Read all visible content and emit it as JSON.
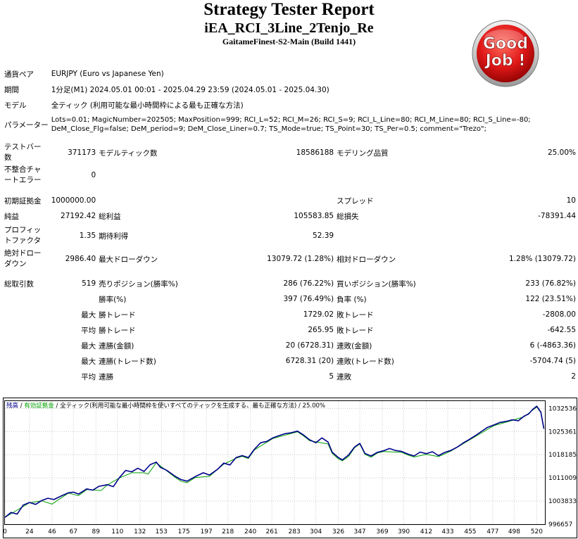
{
  "header": {
    "title": "Strategy Tester Report",
    "ea_name": "iEA_RCI_3Line_2Tenjo_Re",
    "server": "GaitameFinest-S2-Main (Build 1441)",
    "badge_line1": "Good",
    "badge_line2": "Job !"
  },
  "info": {
    "pair_label": "通貨ペア",
    "pair_value": "EURJPY (Euro vs Japanese Yen)",
    "period_label": "期間",
    "period_value": "1分足(M1) 2024.05.01 00:01 - 2025.04.29 23:59 (2024.05.01 - 2025.04.30)",
    "model_label": "モデル",
    "model_value": "全ティック (利用可能な最小時間枠による最も正確な方法)",
    "params_label": "パラメーター",
    "params_line1": "Lots=0.01; MagicNumber=202505; MaxPosition=999; RCI_L=52; RCI_M=26; RCI_S=9; RCI_L_Line=80; RCI_M_Line=80; RCI_S_Line=-80;",
    "params_line2": "DeM_Close_Flg=false; DeM_period=9; DeM_Close_Liner=0.7; TS_Mode=true; TS_Point=30; TS_Per=0.5; comment=\"Trezo\";"
  },
  "stats": {
    "bars_label": "テストバー数",
    "bars_value": "371173",
    "ticks_label": "モデルティック数",
    "ticks_value": "18586188",
    "quality_label": "モデリング品質",
    "quality_value": "25.00%",
    "mismatch_label": "不整合チャートエラー",
    "mismatch_value": "0",
    "deposit_label": "初期証拠金",
    "deposit_value": "1000000.00",
    "spread_label": "スプレッド",
    "spread_value": "10",
    "net_label": "純益",
    "net_value": "27192.42",
    "gross_profit_label": "総利益",
    "gross_profit_value": "105583.85",
    "gross_loss_label": "総損失",
    "gross_loss_value": "-78391.44",
    "pf_label": "プロフィットファクタ",
    "pf_value": "1.35",
    "payoff_label": "期待利得",
    "payoff_value": "52.39",
    "abs_dd_label": "絶対ドローダウン",
    "abs_dd_value": "2986.40",
    "max_dd_label": "最大ドローダウン",
    "max_dd_value": "13079.72 (1.28%)",
    "rel_dd_label": "相対ドローダウン",
    "rel_dd_value": "1.28% (13079.72)",
    "trades_label": "総取引数",
    "trades_value": "519",
    "short_label": "売りポジション(勝率%)",
    "short_value": "286 (76.22%)",
    "long_label": "買いポジション(勝率%)",
    "long_value": "233 (76.82%)",
    "win_label": "勝率(%)",
    "win_value": "397 (76.49%)",
    "loss_label": "負率 (%)",
    "loss_value": "122 (23.51%)",
    "max_prefix": "最大",
    "avg_prefix": "平均",
    "largest_win_label": "勝トレード",
    "largest_win_value": "1729.02",
    "largest_loss_label": "敗トレード",
    "largest_loss_value": "-2808.00",
    "avg_win_label": "勝トレード",
    "avg_win_value": "265.95",
    "avg_loss_label": "敗トレード",
    "avg_loss_value": "-642.55",
    "cons_win_amt_label": "連勝(金額)",
    "cons_win_amt_value": "20 (6728.31)",
    "cons_loss_amt_label": "連敗(金額)",
    "cons_loss_amt_value": "6 (-4863.36)",
    "cons_profit_label": "連勝(トレード数)",
    "cons_profit_value": "6728.31 (20)",
    "cons_loss_cnt_label": "連敗(トレード数)",
    "cons_loss_cnt_value": "-5704.74 (5)",
    "avg_cons_win_label": "連勝",
    "avg_cons_win_value": "5",
    "avg_cons_loss_label": "連敗",
    "avg_cons_loss_value": "2"
  },
  "colors": {
    "balance": "#00008b",
    "equity": "#00a000",
    "grid": "#c8c8c8",
    "badge_red": "#d01010"
  },
  "chart_data": {
    "type": "line",
    "legend_balance": "残高",
    "legend_equity": "有効証拠金",
    "legend_sep1": " / ",
    "legend_model": "全ティック(利用可能な最小時間枠を使いすべてのティックを生成する、最も正確な方法)",
    "legend_sep2": " / ",
    "legend_quality": "25.00%",
    "x_ticks": [
      0,
      24,
      46,
      67,
      89,
      110,
      132,
      153,
      175,
      197,
      218,
      240,
      261,
      283,
      304,
      326,
      347,
      369,
      390,
      412,
      433,
      455,
      477,
      498,
      520
    ],
    "y_ticks": [
      996657,
      1003833,
      1011009,
      1018185,
      1025361,
      1032536
    ],
    "xlim": [
      0,
      528
    ],
    "ylim": [
      996657,
      1034800
    ],
    "balance": [
      [
        0,
        998800
      ],
      [
        6,
        1000300
      ],
      [
        12,
        999800
      ],
      [
        18,
        1002600
      ],
      [
        24,
        1003400
      ],
      [
        30,
        1002800
      ],
      [
        36,
        1004000
      ],
      [
        42,
        1004700
      ],
      [
        48,
        1004300
      ],
      [
        55,
        1005400
      ],
      [
        62,
        1006400
      ],
      [
        67,
        1006600
      ],
      [
        72,
        1006000
      ],
      [
        80,
        1007600
      ],
      [
        86,
        1007200
      ],
      [
        92,
        1008400
      ],
      [
        100,
        1008900
      ],
      [
        106,
        1008300
      ],
      [
        112,
        1011100
      ],
      [
        118,
        1013300
      ],
      [
        124,
        1012900
      ],
      [
        130,
        1014000
      ],
      [
        136,
        1013000
      ],
      [
        142,
        1015100
      ],
      [
        148,
        1015900
      ],
      [
        152,
        1014300
      ],
      [
        158,
        1013400
      ],
      [
        166,
        1011600
      ],
      [
        172,
        1010500
      ],
      [
        178,
        1010000
      ],
      [
        186,
        1011400
      ],
      [
        194,
        1012600
      ],
      [
        200,
        1011900
      ],
      [
        208,
        1013700
      ],
      [
        214,
        1015600
      ],
      [
        220,
        1015000
      ],
      [
        226,
        1017300
      ],
      [
        232,
        1017900
      ],
      [
        238,
        1017300
      ],
      [
        244,
        1019900
      ],
      [
        250,
        1021900
      ],
      [
        256,
        1022300
      ],
      [
        262,
        1023400
      ],
      [
        268,
        1024100
      ],
      [
        274,
        1024700
      ],
      [
        280,
        1025000
      ],
      [
        286,
        1025500
      ],
      [
        292,
        1024300
      ],
      [
        298,
        1022800
      ],
      [
        304,
        1021900
      ],
      [
        310,
        1023400
      ],
      [
        316,
        1022100
      ],
      [
        320,
        1019000
      ],
      [
        326,
        1017300
      ],
      [
        330,
        1016600
      ],
      [
        336,
        1018100
      ],
      [
        342,
        1020600
      ],
      [
        347,
        1021700
      ],
      [
        352,
        1018600
      ],
      [
        358,
        1017800
      ],
      [
        364,
        1018900
      ],
      [
        370,
        1019400
      ],
      [
        376,
        1020100
      ],
      [
        382,
        1019500
      ],
      [
        388,
        1019200
      ],
      [
        394,
        1018400
      ],
      [
        400,
        1017800
      ],
      [
        406,
        1019000
      ],
      [
        412,
        1018500
      ],
      [
        418,
        1019100
      ],
      [
        424,
        1017900
      ],
      [
        430,
        1018900
      ],
      [
        436,
        1019500
      ],
      [
        442,
        1020500
      ],
      [
        448,
        1021800
      ],
      [
        454,
        1022900
      ],
      [
        460,
        1024100
      ],
      [
        466,
        1025400
      ],
      [
        472,
        1026700
      ],
      [
        478,
        1027400
      ],
      [
        484,
        1028200
      ],
      [
        490,
        1028500
      ],
      [
        496,
        1029000
      ],
      [
        502,
        1028700
      ],
      [
        508,
        1030200
      ],
      [
        512,
        1030800
      ],
      [
        516,
        1032200
      ],
      [
        520,
        1033200
      ],
      [
        524,
        1031400
      ],
      [
        527,
        1026300
      ]
    ],
    "equity": [
      [
        0,
        998800
      ],
      [
        24,
        1003300
      ],
      [
        36,
        1003900
      ],
      [
        46,
        1002900
      ],
      [
        62,
        1006300
      ],
      [
        72,
        1005500
      ],
      [
        80,
        1007400
      ],
      [
        94,
        1007100
      ],
      [
        100,
        1008800
      ],
      [
        112,
        1011000
      ],
      [
        124,
        1012600
      ],
      [
        136,
        1012600
      ],
      [
        140,
        1012200
      ],
      [
        148,
        1015700
      ],
      [
        166,
        1011300
      ],
      [
        172,
        1010000
      ],
      [
        178,
        1009500
      ],
      [
        186,
        1011100
      ],
      [
        200,
        1011500
      ],
      [
        214,
        1015300
      ],
      [
        226,
        1017100
      ],
      [
        232,
        1017700
      ],
      [
        238,
        1017000
      ],
      [
        244,
        1019700
      ],
      [
        262,
        1023200
      ],
      [
        286,
        1025300
      ],
      [
        292,
        1024000
      ],
      [
        298,
        1022500
      ],
      [
        316,
        1021500
      ],
      [
        320,
        1018600
      ],
      [
        326,
        1016900
      ],
      [
        330,
        1016300
      ],
      [
        336,
        1017600
      ],
      [
        342,
        1020400
      ],
      [
        347,
        1021500
      ],
      [
        352,
        1018300
      ],
      [
        358,
        1017400
      ],
      [
        364,
        1018700
      ],
      [
        370,
        1019200
      ],
      [
        388,
        1018900
      ],
      [
        394,
        1018100
      ],
      [
        400,
        1017500
      ],
      [
        412,
        1018300
      ],
      [
        424,
        1017600
      ],
      [
        436,
        1019300
      ],
      [
        454,
        1022700
      ],
      [
        478,
        1027200
      ],
      [
        496,
        1028800
      ],
      [
        508,
        1030000
      ],
      [
        520,
        1033000
      ],
      [
        524,
        1031200
      ],
      [
        527,
        1026100
      ]
    ]
  }
}
